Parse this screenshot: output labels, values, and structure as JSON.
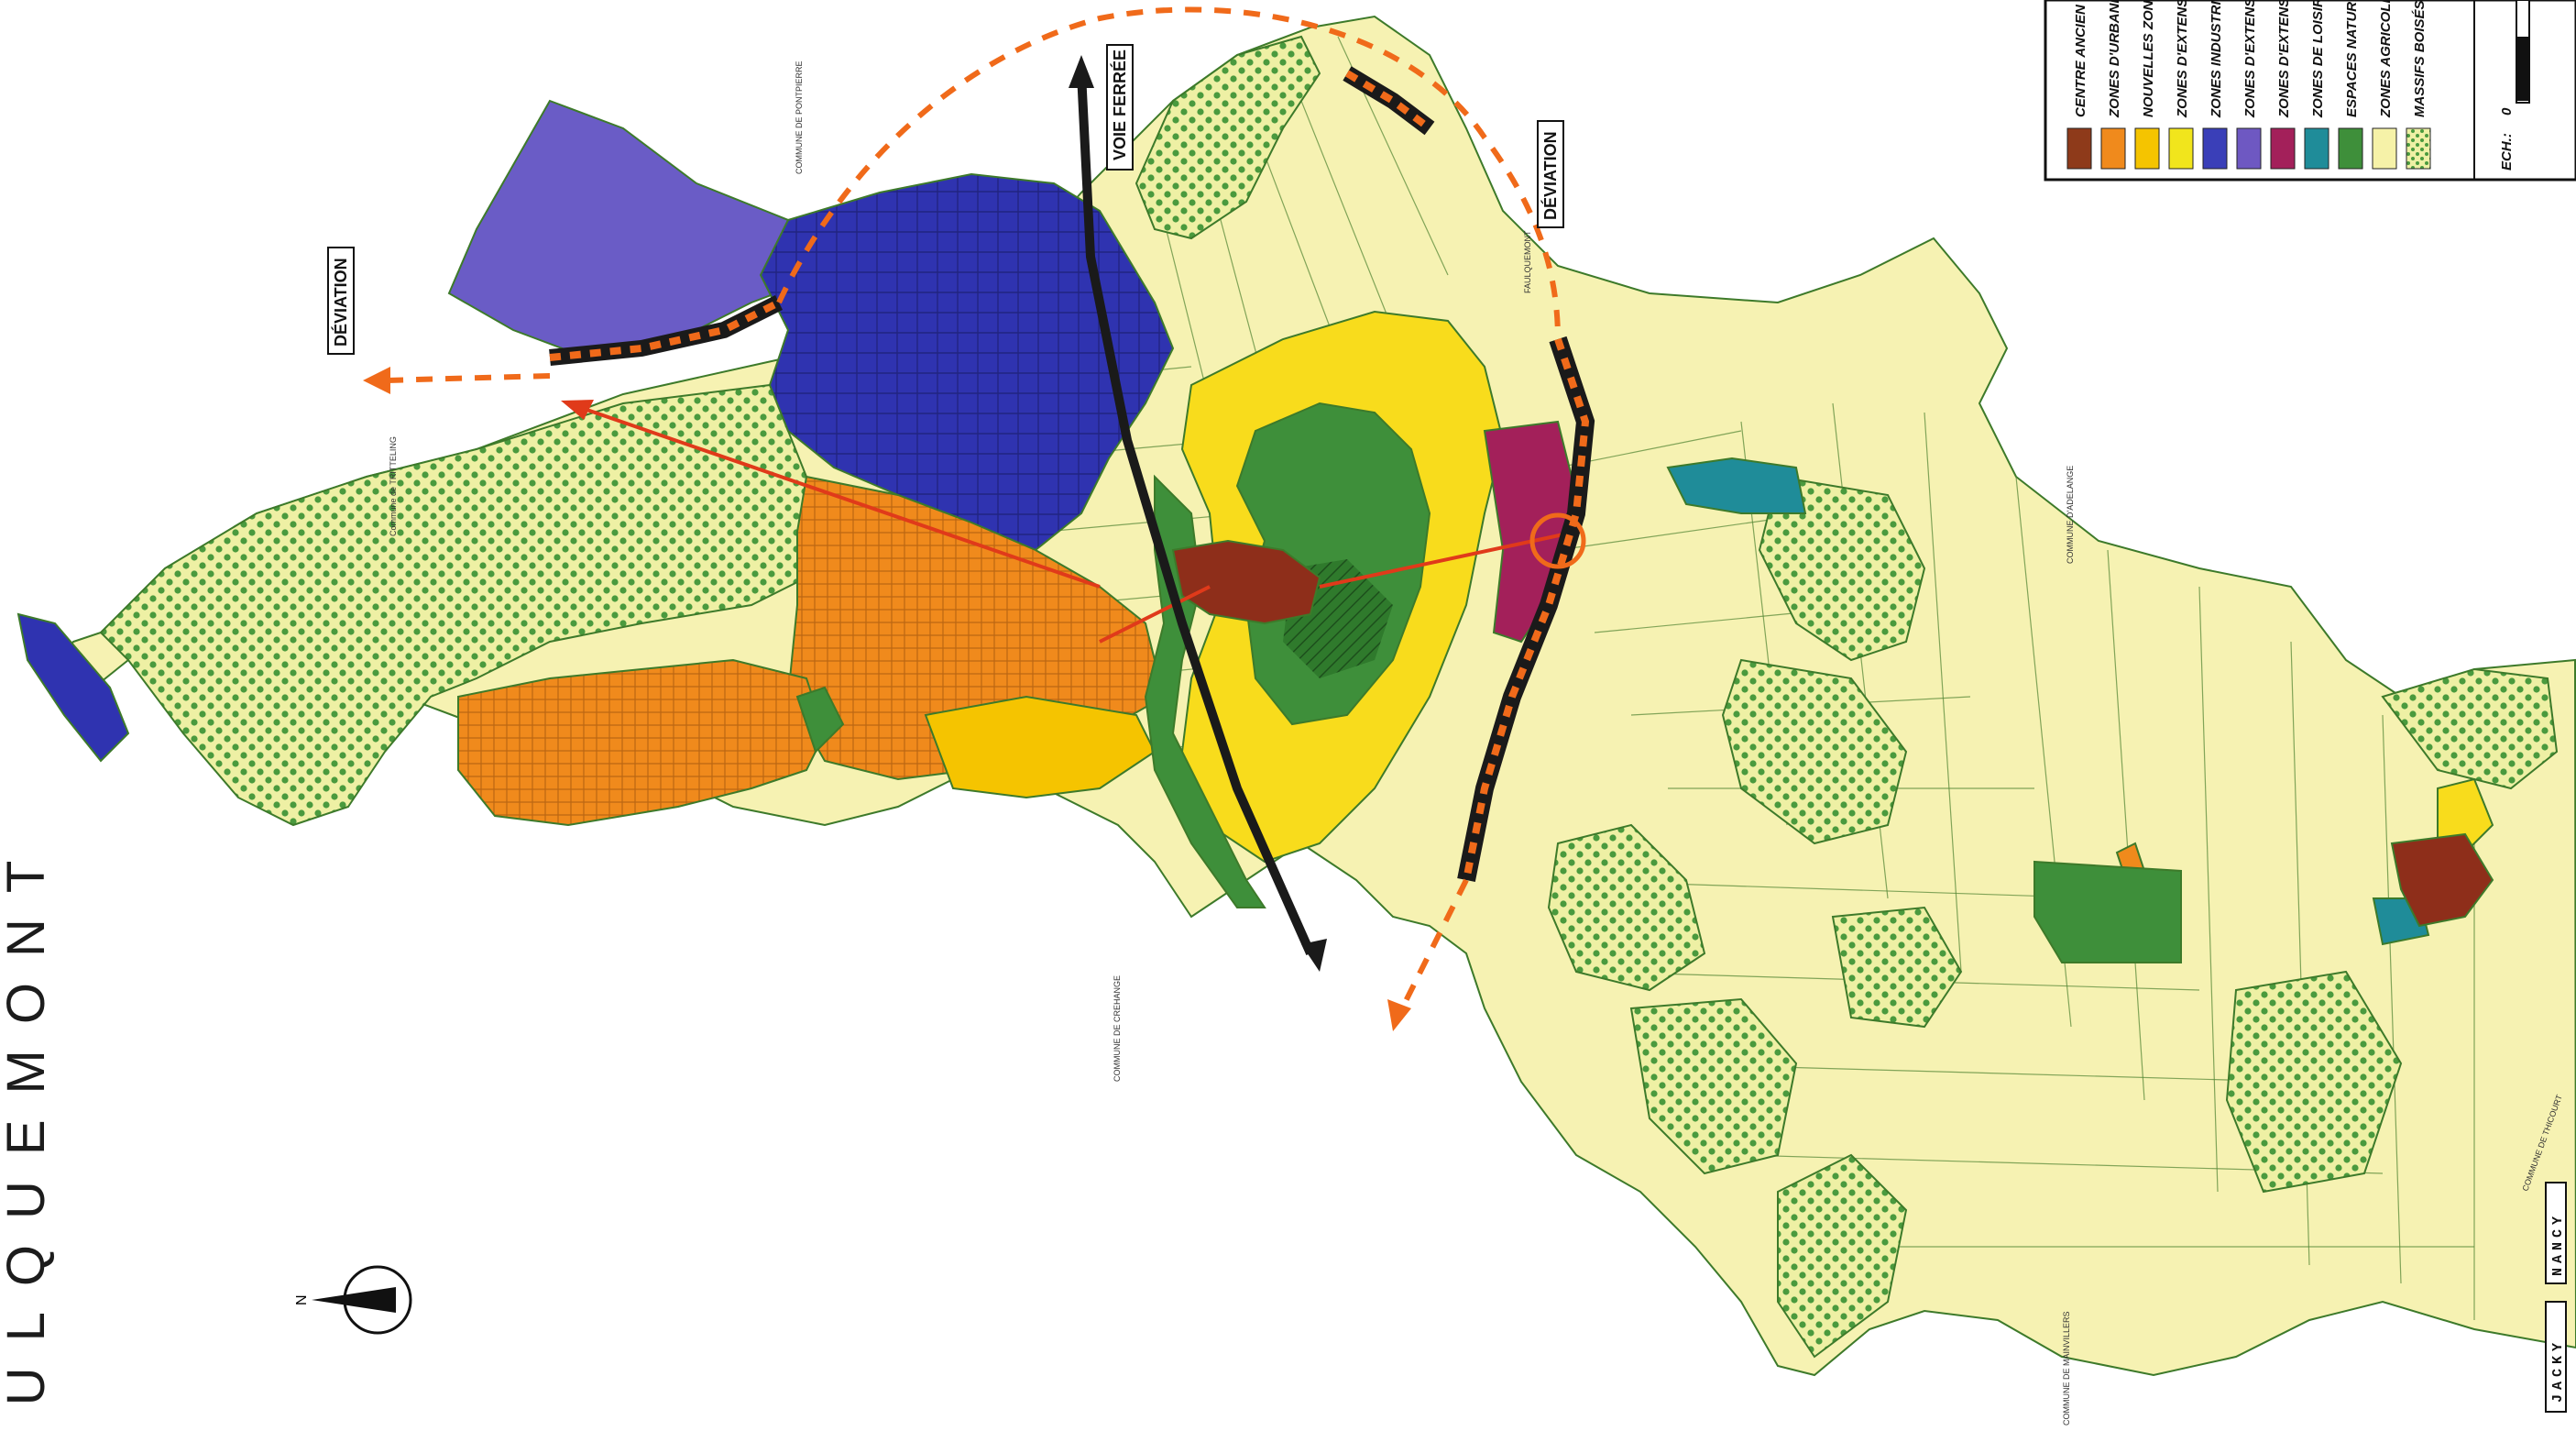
{
  "title": "AULQUEMONT",
  "north_label": "N",
  "labels": {
    "voie_ferree": "VOIE FERRÉE",
    "deviation_west": "DÉVIATION",
    "deviation_east": "DÉVIATION"
  },
  "communes": {
    "pontpierre": "COMMUNE DE PONTPIERRE",
    "tritteling": "Commune de TRITTELING",
    "adelange": "COMMUNE D'ADELANGE",
    "crehange": "COMMUNE DE CREHANGE",
    "mainvillers": "COMMUNE DE MAINVILLERS",
    "thicourt": "COMMUNE DE THICOURT",
    "faulquemont_small": "FAULQUEMONT"
  },
  "legend": {
    "items": [
      {
        "label": "CENTRE ANCIEN",
        "color": "#8e3a1a"
      },
      {
        "label": "ZONES D'URBANISATION",
        "color": "#f08a1c"
      },
      {
        "label": "NOUVELLES ZONES",
        "color": "#f5c400"
      },
      {
        "label": "ZONES D'EXTENSION",
        "color": "#f1e51c"
      },
      {
        "label": "ZONES INDUSTRIELLES",
        "color": "#3a3fb8"
      },
      {
        "label": "ZONES D'EXTENSION",
        "color": "#6e58c2"
      },
      {
        "label": "ZONES D'EXTENSION",
        "color": "#a3205a"
      },
      {
        "label": "ZONES DE LOISIRS",
        "color": "#1f8c99"
      },
      {
        "label": "ESPACES NATURELS",
        "color": "#3e8f3a"
      },
      {
        "label": "ZONES AGRICOLES",
        "color": "#f6f2a8"
      },
      {
        "label": "MASSIFS BOISÉS",
        "color": "#e9eea0"
      }
    ],
    "scale_label": "ECH.:",
    "scale_zero": "0"
  },
  "signature": {
    "line1": "JACKY",
    "line2": "NANCY"
  },
  "colors": {
    "agricultural": "#f6f2b2",
    "woods_dot": "#3f8f3a",
    "industrial": "#2f33b0",
    "industrial_ext": "#6a5cc6",
    "urban": "#f08a1c",
    "new_zone": "#f8dc1c",
    "natural": "#3e8f3a",
    "old_center": "#8e2e1a",
    "leisure": "#1f8c99",
    "purple_red": "#a3205a",
    "deviation_orange": "#f06a1a",
    "rail": "#1a1a1a"
  }
}
